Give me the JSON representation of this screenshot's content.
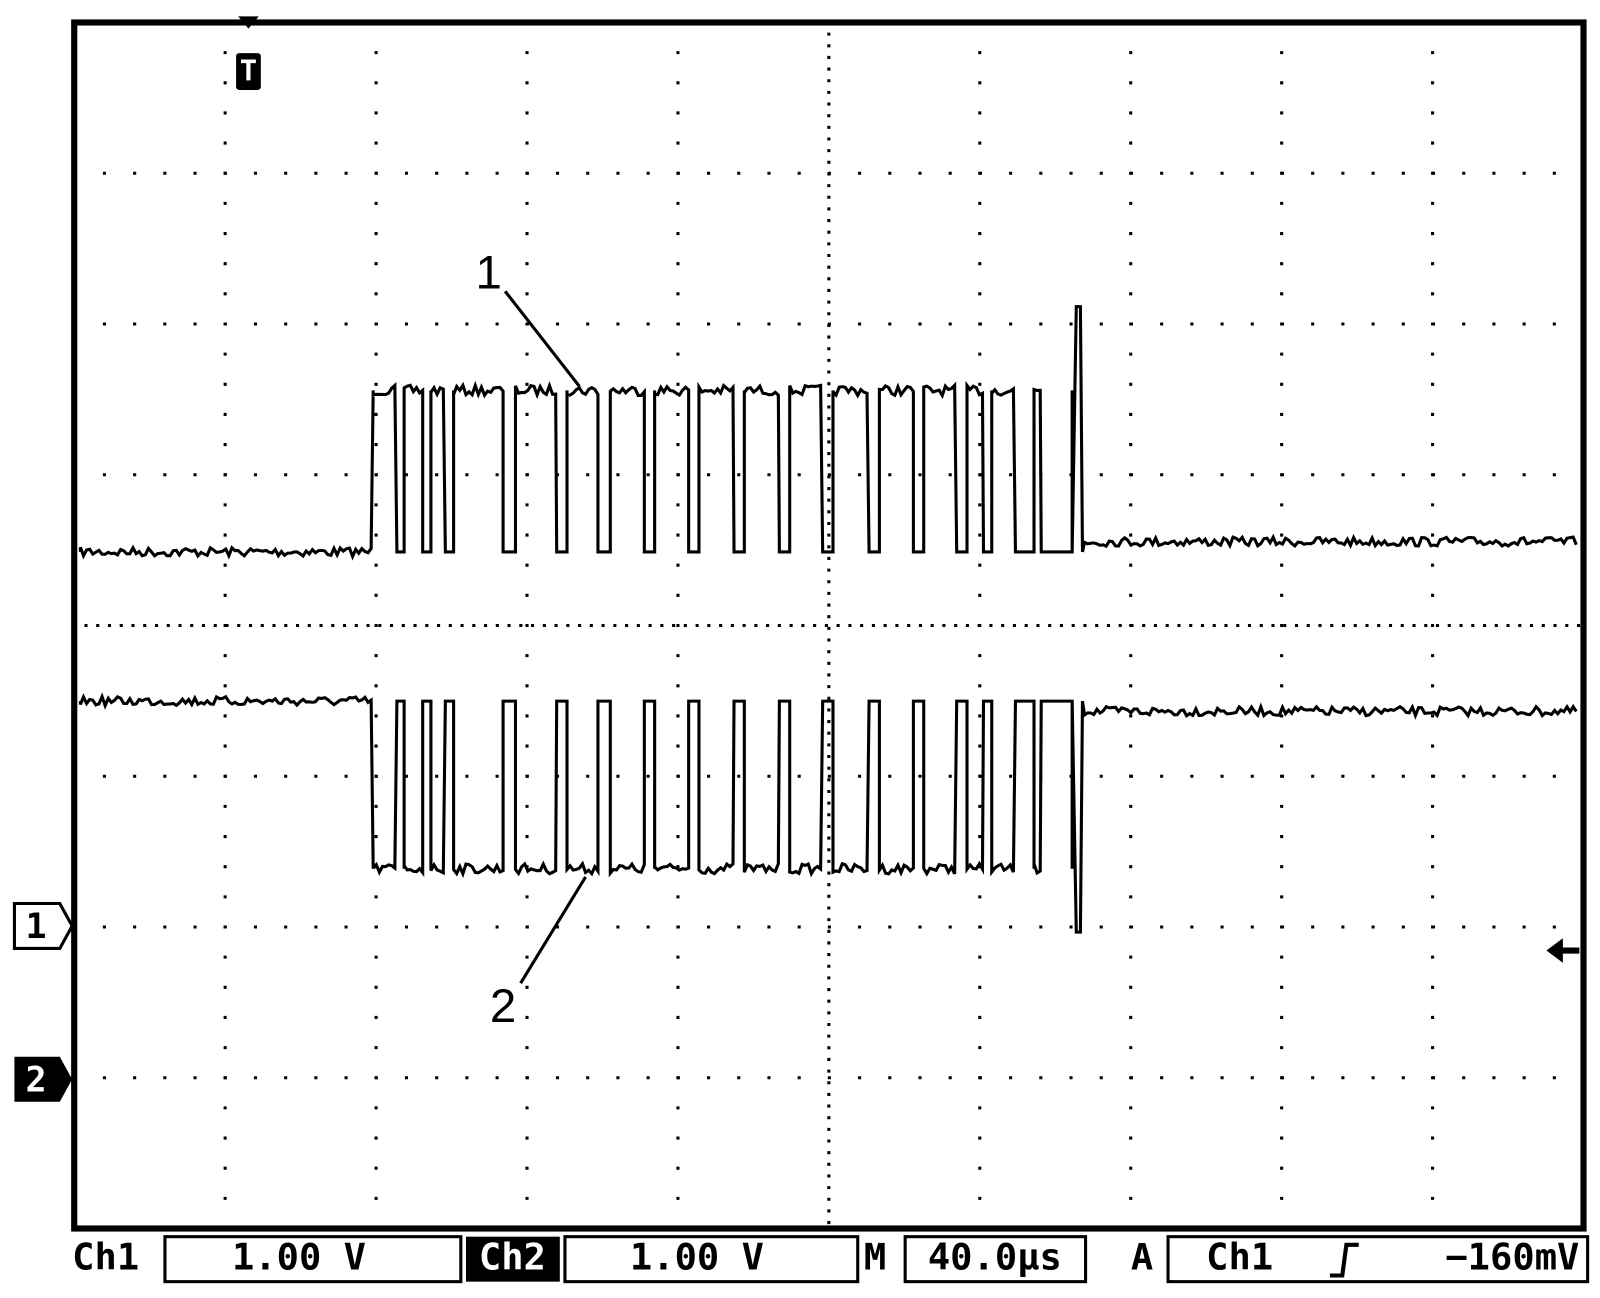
{
  "trigger_marker": "T",
  "annotations": [
    "1",
    "2"
  ],
  "channel_markers": [
    "1",
    "2"
  ],
  "status_bar": {
    "ch1": {
      "label": "Ch1",
      "scale": "1.00 V"
    },
    "ch2": {
      "label": "Ch2",
      "scale": "1.00 V"
    },
    "timebase": {
      "label": "M",
      "value": "40.0µs"
    },
    "trigger": {
      "label": "A",
      "source": "Ch1",
      "level": "−160mV"
    }
  }
}
